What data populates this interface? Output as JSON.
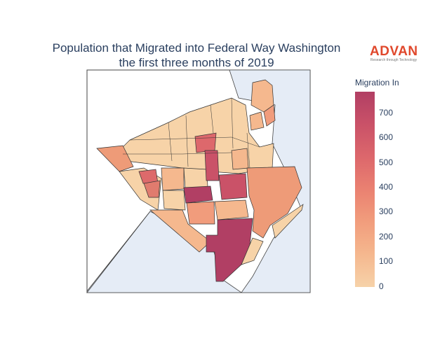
{
  "title": {
    "line1": "Population that Migrated into Federal Way Washington",
    "line2": "the first three months of 2019"
  },
  "logo": {
    "name": "ADVAN",
    "tagline": "Research through Technology"
  },
  "legend": {
    "title": "Migration In",
    "ticks": [
      "700",
      "600",
      "500",
      "400",
      "300",
      "200",
      "100",
      "0"
    ],
    "range": [
      0,
      800
    ]
  },
  "colors": {
    "water": "#e5ecf6",
    "land": "#ffffff",
    "border": "#333333",
    "scale": [
      "#f6d2a9",
      "#f5b78e",
      "#f19c7c",
      "#ea8171",
      "#dd686c",
      "#ca5268",
      "#b13f64"
    ]
  }
}
